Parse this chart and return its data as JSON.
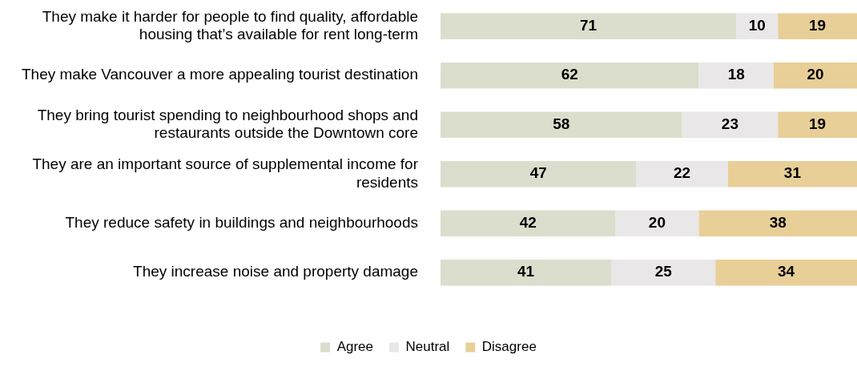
{
  "chart_data": {
    "type": "bar",
    "orientation": "horizontal",
    "stacked": true,
    "data_labels": true,
    "legend": "bottom",
    "grid": false,
    "tick_labels": "y",
    "categories": [
      "They make it harder for people to find quality, affordable housing that’s available for rent long-term",
      "They make Vancouver a more appealing tourist destination",
      "They bring tourist spending to neighbourhood shops and restaurants outside the Downtown core",
      "They are an important source of supplemental income for residents",
      "They reduce safety in buildings and neighbourhoods",
      "They increase noise and property damage"
    ],
    "series": [
      {
        "name": "Agree",
        "color": "#dbdecc",
        "values": [
          71,
          62,
          58,
          47,
          42,
          41
        ]
      },
      {
        "name": "Neutral",
        "color": "#e9e7e8",
        "values": [
          10,
          18,
          23,
          22,
          20,
          25
        ]
      },
      {
        "name": "Disagree",
        "color": "#e8cf98",
        "values": [
          19,
          20,
          19,
          31,
          38,
          34
        ]
      }
    ]
  }
}
